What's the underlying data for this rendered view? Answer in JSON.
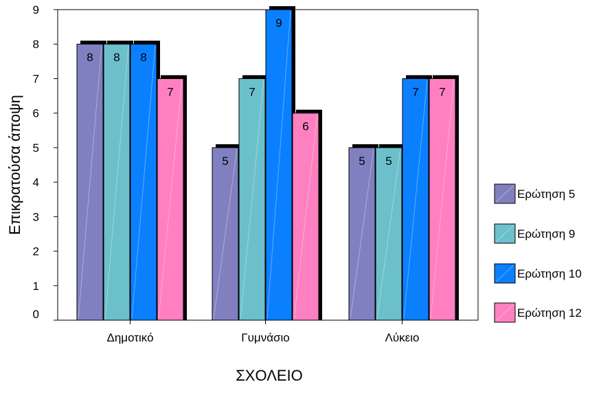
{
  "chart_data": {
    "type": "bar",
    "title": "",
    "xlabel": "ΣΧΟΛΕΙΟ",
    "ylabel": "Επικρατούσα άποψη",
    "categories": [
      "Δημοτικό",
      "Γυμνάσιο",
      "Λύκειο"
    ],
    "ylim": [
      0,
      9
    ],
    "yticks": [
      0,
      1,
      2,
      3,
      4,
      5,
      6,
      7,
      8,
      9
    ],
    "grid": false,
    "legend_position": "right",
    "data_labels": true,
    "series": [
      {
        "name": "Ερώτηση 5",
        "values": [
          8,
          5,
          5
        ],
        "color": "#8080c0"
      },
      {
        "name": "Ερώτηση 9",
        "values": [
          8,
          7,
          5
        ],
        "color": "#6cc0cc"
      },
      {
        "name": "Ερώτηση 10",
        "values": [
          8,
          9,
          7
        ],
        "color": "#0a80ff"
      },
      {
        "name": "Ερώτηση 12",
        "values": [
          7,
          6,
          7
        ],
        "color": "#ff80c0"
      }
    ]
  }
}
